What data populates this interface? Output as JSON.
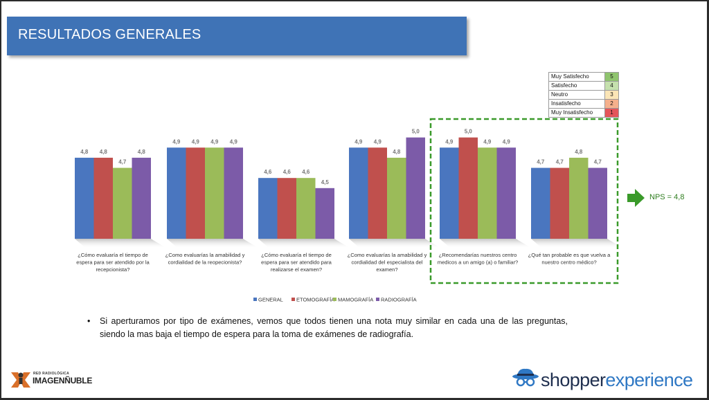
{
  "title": "RESULTADOS GENERALES",
  "colors": {
    "title_bar": "#3f73b6",
    "highlight": "#3a9a2a"
  },
  "chart_data": {
    "type": "bar",
    "title": "",
    "ylim": [
      4.0,
      5.1
    ],
    "categories": [
      [
        "¿Cómo evaluaría el tiempo de",
        "espera para ser atendido por la",
        "recepcionista?"
      ],
      [
        "¿Como evaluarías  la amabilidad y",
        "cordialidad de la reopecionista?"
      ],
      [
        "¿Cómo evaluaría el tiempo de",
        "espera para ser atendido para",
        "realizarse el examen?"
      ],
      [
        "¿Como evaluarías  la amabilidad y",
        "cordialidad  del especialista del",
        "examen?"
      ],
      [
        "¿Recomendarías nuestros centro",
        "medicos  a un amigo (a) o familiar?"
      ],
      [
        "¿Qué tan probable es que vuelva a",
        "nuestro centro médico?"
      ]
    ],
    "series": [
      {
        "name": "GENERAL",
        "color": "#4a76bf",
        "values": [
          4.8,
          4.9,
          4.6,
          4.9,
          4.9,
          4.7
        ],
        "labels": [
          "4,8",
          "4,9",
          "4,6",
          "4,9",
          "4,9",
          "4,7"
        ]
      },
      {
        "name": "ETOMOGRAFÍA",
        "color": "#c0504d",
        "values": [
          4.8,
          4.9,
          4.6,
          4.9,
          5.0,
          4.7
        ],
        "labels": [
          "4,8",
          "4,9",
          "4,6",
          "4,9",
          "5,0",
          "4,7"
        ]
      },
      {
        "name": "MAMOGRAFÍA",
        "color": "#9bbb59",
        "values": [
          4.7,
          4.9,
          4.6,
          4.8,
          4.9,
          4.8
        ],
        "labels": [
          "4,7",
          "4,9",
          "4,6",
          "4,8",
          "4,9",
          "4,8"
        ]
      },
      {
        "name": "RADIOGRAFÍA",
        "color": "#7c5ba8",
        "values": [
          4.8,
          4.9,
          4.5,
          5.0,
          4.9,
          4.7
        ],
        "labels": [
          "4,8",
          "4,9",
          "4,5",
          "5,0",
          "4,9",
          "4,7"
        ]
      }
    ],
    "legend_placement": "bottom"
  },
  "scale_legend": [
    {
      "label": "Muy Satisfecho",
      "value": "5",
      "color": "#8fc46e"
    },
    {
      "label": "Satisfecho",
      "value": "4",
      "color": "#c5e0ad"
    },
    {
      "label": "Neutro",
      "value": "3",
      "color": "#fbe5b6"
    },
    {
      "label": "Insatisfecho",
      "value": "2",
      "color": "#f5b08c"
    },
    {
      "label": "Muy Insatisfecho",
      "value": "1",
      "color": "#e4565a"
    }
  ],
  "nps_label": "NPS = 4,8",
  "bullet_text": "Si aperturamos por tipo de exámenes, vemos que todos tienen una nota muy similar en cada una de las preguntas, siendo la mas baja el tiempo de espera para la toma de  exámenes de radiografía.",
  "logo_left": {
    "line1": "RED RADIOLÓGICA",
    "line2": "IMAGENÑUBLE"
  },
  "logo_right": {
    "part1": "shopper",
    "part2": "experience"
  }
}
